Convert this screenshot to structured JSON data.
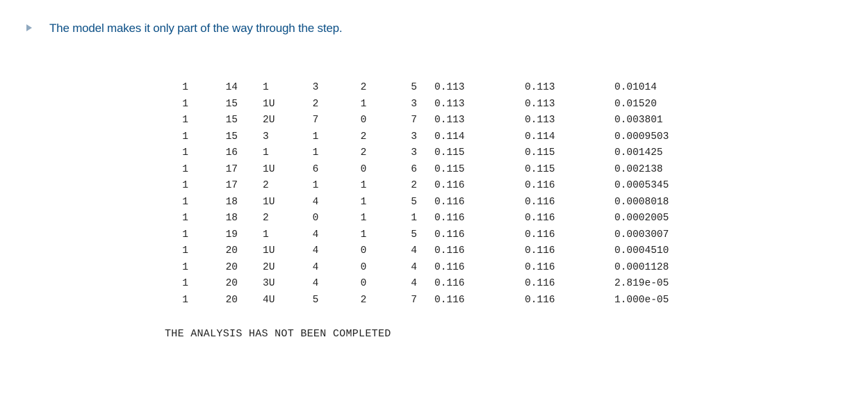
{
  "heading": {
    "bullet_icon": "triangle-right-icon",
    "text": "The model makes it only part of the way through the step."
  },
  "table": {
    "rows": [
      [
        "1",
        "14",
        "1",
        "3",
        "2",
        "5",
        "0.113",
        "0.113",
        "0.01014"
      ],
      [
        "1",
        "15",
        "1U",
        "2",
        "1",
        "3",
        "0.113",
        "0.113",
        "0.01520"
      ],
      [
        "1",
        "15",
        "2U",
        "7",
        "0",
        "7",
        "0.113",
        "0.113",
        "0.003801"
      ],
      [
        "1",
        "15",
        "3",
        "1",
        "2",
        "3",
        "0.114",
        "0.114",
        "0.0009503"
      ],
      [
        "1",
        "16",
        "1",
        "1",
        "2",
        "3",
        "0.115",
        "0.115",
        "0.001425"
      ],
      [
        "1",
        "17",
        "1U",
        "6",
        "0",
        "6",
        "0.115",
        "0.115",
        "0.002138"
      ],
      [
        "1",
        "17",
        "2",
        "1",
        "1",
        "2",
        "0.116",
        "0.116",
        "0.0005345"
      ],
      [
        "1",
        "18",
        "1U",
        "4",
        "1",
        "5",
        "0.116",
        "0.116",
        "0.0008018"
      ],
      [
        "1",
        "18",
        "2",
        "0",
        "1",
        "1",
        "0.116",
        "0.116",
        "0.0002005"
      ],
      [
        "1",
        "19",
        "1",
        "4",
        "1",
        "5",
        "0.116",
        "0.116",
        "0.0003007"
      ],
      [
        "1",
        "20",
        "1U",
        "4",
        "0",
        "4",
        "0.116",
        "0.116",
        "0.0004510"
      ],
      [
        "1",
        "20",
        "2U",
        "4",
        "0",
        "4",
        "0.116",
        "0.116",
        "0.0001128"
      ],
      [
        "1",
        "20",
        "3U",
        "4",
        "0",
        "4",
        "0.116",
        "0.116",
        "2.819e-05"
      ],
      [
        "1",
        "20",
        "4U",
        "5",
        "2",
        "7",
        "0.116",
        "0.116",
        "1.000e-05"
      ]
    ]
  },
  "status": "THE ANALYSIS HAS NOT BEEN COMPLETED",
  "colors": {
    "heading": "#0b4f86",
    "bullet": "#8fa8bf",
    "text": "#222222"
  }
}
